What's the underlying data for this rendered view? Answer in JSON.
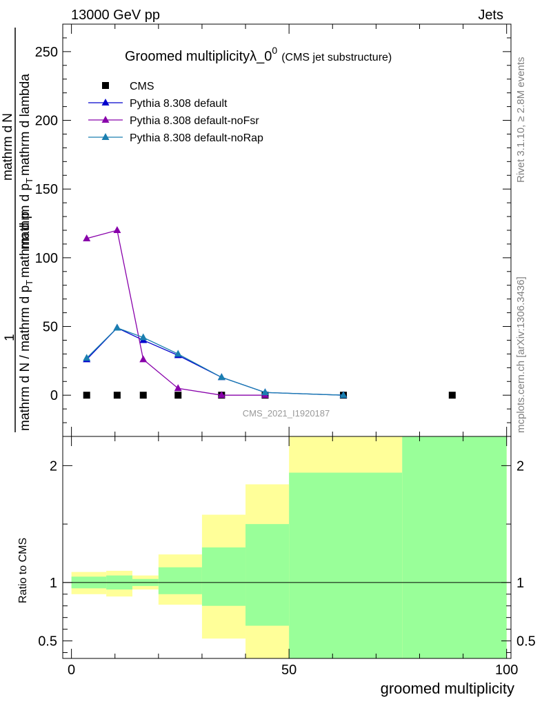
{
  "header": {
    "left": "13000 GeV pp",
    "right": "Jets"
  },
  "side": {
    "rivet": "Rivet 3.1.10, ≥ 2.8M events",
    "mcplots": "mcplots.cern.ch [arXiv:1306.3436]"
  },
  "chart_data": [
    {
      "type": "line",
      "title_main": "Groomed multiplicityλ_0",
      "title_sup": "0",
      "title_paren": "(CMS jet substructure)",
      "ylabel_parts": [
        "1",
        "mathrm d N / mathrm d p",
        "mathrm d p",
        "mathrm d lambda",
        "mathrm d",
        "N",
        "T",
        "mathrm d",
        "mathrm d p"
      ],
      "ylabel_top_line1": "mathrm d",
      "ylabel_top_line1b": "N",
      "ylabel_top_line2": "mathrm d p",
      "ylabel_top_line2_sub": "T",
      "ylabel_top_line2b": "mathrm d lambda",
      "ylabel_bottom_line1": "mathrm d N / mathrm d p",
      "ylabel_bottom_line1_sub": "T",
      "ylabel_bottom_line1b": "mathrm d p",
      "ylabel_numerator": "1",
      "watermark": "CMS_2021_I1920187",
      "xlim": [
        -2,
        101
      ],
      "ylim": [
        -30,
        270
      ],
      "yticks": [
        0,
        50,
        100,
        150,
        200,
        250
      ],
      "ytick_labels": [
        "0",
        "50",
        "100",
        "150",
        "200",
        "250"
      ],
      "legend_position": "top-left",
      "series": [
        {
          "name": "CMS",
          "color": "#000000",
          "marker": "square",
          "x": [
            3.5,
            10.5,
            16.5,
            24.5,
            34.5,
            44.5,
            62.5,
            87.5
          ],
          "y": [
            0,
            0,
            0,
            0,
            0,
            0,
            0,
            0
          ]
        },
        {
          "name": "Pythia 8.308 default",
          "color": "#0000cc",
          "marker": "triangle",
          "x": [
            3.5,
            10.5,
            16.5,
            24.5,
            34.5,
            44.5,
            62.5
          ],
          "y": [
            26,
            49,
            40,
            29,
            13,
            2,
            0
          ]
        },
        {
          "name": "Pythia 8.308 default-noFsr",
          "color": "#8800aa",
          "marker": "triangle",
          "x": [
            3.5,
            10.5,
            16.5,
            24.5,
            34.5,
            44.5
          ],
          "y": [
            114,
            120,
            26,
            5,
            0,
            0
          ]
        },
        {
          "name": "Pythia 8.308 default-noRap",
          "color": "#1a7fb0",
          "marker": "triangle",
          "x": [
            3.5,
            10.5,
            16.5,
            24.5,
            34.5,
            44.5,
            62.5
          ],
          "y": [
            27,
            49,
            42,
            30,
            13,
            2,
            0
          ]
        }
      ]
    },
    {
      "type": "area",
      "ylabel": "Ratio to CMS",
      "xlabel": "groomed multiplicity",
      "xlim": [
        -2,
        101
      ],
      "ylim": [
        0.35,
        2.25
      ],
      "yticks": [
        0.5,
        1,
        2
      ],
      "ytick_labels": [
        "0.5",
        "1",
        "2"
      ],
      "xticks": [
        0,
        50,
        100
      ],
      "xtick_labels": [
        "0",
        "50",
        "100"
      ],
      "reference_line": 1,
      "bands": [
        {
          "x0": 0,
          "x1": 8,
          "green": [
            0.95,
            1.05
          ],
          "yellow": [
            0.9,
            1.09
          ]
        },
        {
          "x0": 8,
          "x1": 14,
          "green": [
            0.94,
            1.06
          ],
          "yellow": [
            0.88,
            1.1
          ]
        },
        {
          "x0": 14,
          "x1": 20,
          "green": [
            0.97,
            1.03
          ],
          "yellow": [
            0.94,
            1.06
          ]
        },
        {
          "x0": 20,
          "x1": 30,
          "green": [
            0.9,
            1.13
          ],
          "yellow": [
            0.81,
            1.24
          ]
        },
        {
          "x0": 30,
          "x1": 40,
          "green": [
            0.8,
            1.3
          ],
          "yellow": [
            0.52,
            1.58
          ]
        },
        {
          "x0": 40,
          "x1": 50,
          "green": [
            0.63,
            1.5
          ],
          "yellow": [
            0.35,
            1.84
          ]
        },
        {
          "x0": 50,
          "x1": 76,
          "green": [
            0.35,
            1.94
          ],
          "yellow": [
            0.35,
            2.25
          ]
        },
        {
          "x0": 76,
          "x1": 100,
          "green": [
            0.35,
            2.25
          ],
          "yellow": [
            0.35,
            2.25
          ]
        }
      ],
      "colors": {
        "green": "#99ff99",
        "yellow": "#ffff99"
      }
    }
  ]
}
